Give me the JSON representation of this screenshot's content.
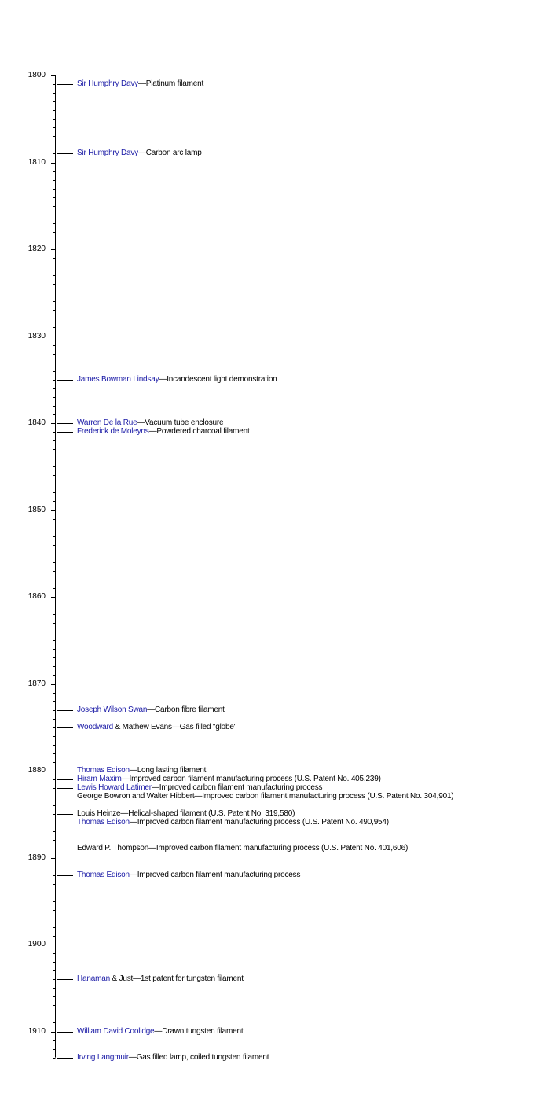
{
  "chart_data": {
    "type": "timeline",
    "axis": {
      "min": 1800,
      "max": 1913,
      "major_step": 10,
      "minor_step": 1,
      "tick_labels": [
        "1800",
        "1810",
        "1820",
        "1830",
        "1840",
        "1850",
        "1860",
        "1870",
        "1880",
        "1890",
        "1900",
        "1910"
      ]
    },
    "link_color": "#1a1aa6",
    "events": [
      {
        "year": 1801,
        "link": "Sir Humphry Davy",
        "text": "—Platinum filament"
      },
      {
        "year": 1809,
        "link": "Sir Humphry Davy",
        "text": "—Carbon arc lamp"
      },
      {
        "year": 1835,
        "link": "James Bowman Lindsay",
        "text": "—Incandescent light demonstration"
      },
      {
        "year": 1840,
        "link": "Warren De la Rue",
        "text": "—Vacuum tube enclosure"
      },
      {
        "year": 1841,
        "link": "Frederick de Moleyns",
        "text": "—Powdered charcoal filament"
      },
      {
        "year": 1873,
        "link": "Joseph Wilson Swan",
        "text": "—Carbon fibre filament"
      },
      {
        "year": 1875,
        "link": "Woodward",
        "text": " & Mathew Evans—Gas filled \"globe\""
      },
      {
        "year": 1880,
        "link": "Thomas Edison",
        "text": "—Long lasting filament"
      },
      {
        "year": 1881,
        "link": "Hiram Maxim",
        "text": "—Improved carbon filament manufacturing process (U.S. Patent No. 405,239)"
      },
      {
        "year": 1882,
        "link": "Lewis Howard Latimer",
        "text": "—Improved carbon filament manufacturing process"
      },
      {
        "year": 1883,
        "link": "",
        "text": "George Bowron and Walter Hibbert—Improved carbon filament manufacturing process (U.S. Patent No. 304,901)"
      },
      {
        "year": 1885,
        "link": "",
        "text": "Louis Heinze—Helical-shaped filament (U.S. Patent No. 319,580)"
      },
      {
        "year": 1886,
        "link": "Thomas Edison",
        "text": "—Improved carbon filament manufacturing process (U.S. Patent No. 490,954)"
      },
      {
        "year": 1889,
        "link": "",
        "text": "Edward P. Thompson—Improved carbon filament manufacturing process (U.S. Patent No. 401,606)"
      },
      {
        "year": 1892,
        "link": "Thomas Edison",
        "text": "—Improved carbon filament manufacturing process"
      },
      {
        "year": 1904,
        "link": "Hanaman",
        "text": " & Just—1st patent for tungsten filament"
      },
      {
        "year": 1910,
        "link": "William David Coolidge",
        "text": "—Drawn tungsten filament"
      },
      {
        "year": 1913,
        "link": "Irving Langmuir",
        "text": "—Gas filled lamp, coiled tungsten filament"
      }
    ]
  }
}
